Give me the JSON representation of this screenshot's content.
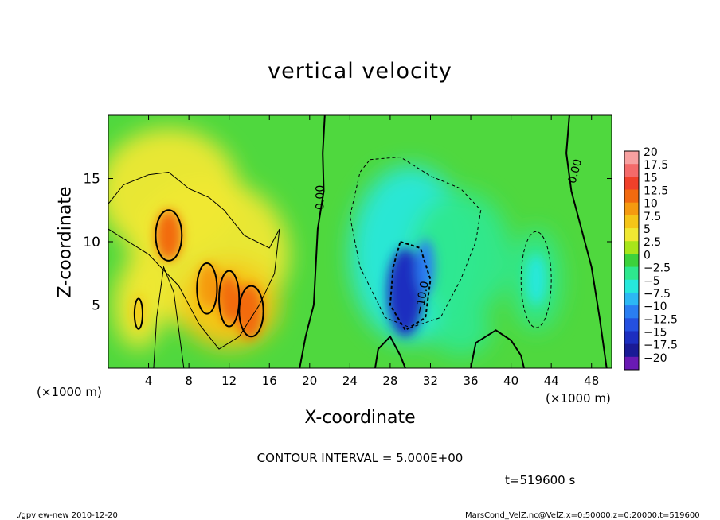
{
  "chart_data": {
    "type": "heatmap",
    "title": "vertical velocity",
    "xlabel": "X-coordinate",
    "ylabel": "Z-coordinate",
    "x_unit_left": "(×1000 m)",
    "x_unit_right": "(×1000 m)",
    "xlim": [
      0,
      50
    ],
    "ylim": [
      0,
      20
    ],
    "x_ticks": [
      "4",
      "8",
      "12",
      "16",
      "20",
      "24",
      "28",
      "32",
      "36",
      "40",
      "44",
      "48"
    ],
    "x_tick_values": [
      4,
      8,
      12,
      16,
      20,
      24,
      28,
      32,
      36,
      40,
      44,
      48
    ],
    "y_ticks": [
      "5",
      "10",
      "15"
    ],
    "y_tick_values": [
      5,
      10,
      15
    ],
    "colorbar_labels": [
      "20",
      "17.5",
      "15",
      "12.5",
      "10",
      "7.5",
      "5",
      "2.5",
      "0",
      "−2.5",
      "−5",
      "−7.5",
      "−10",
      "−12.5",
      "−15",
      "−17.5",
      "−20"
    ],
    "colorbar_colors": [
      "#f7a0a0",
      "#f46a6a",
      "#f0402a",
      "#f26a10",
      "#f59a10",
      "#f5c518",
      "#f0e832",
      "#a8e61a",
      "#3cd23c",
      "#2ee88e",
      "#26e8dc",
      "#2cb8f4",
      "#2a7ef2",
      "#2450e0",
      "#1c2ec0",
      "#1a1a96",
      "#6a1ab4"
    ],
    "contour_labels": [
      "0.00",
      "0.00",
      "−10.0"
    ],
    "features": [
      {
        "kind": "updraft",
        "x": 6,
        "z": 10.5,
        "peak": 12.5
      },
      {
        "kind": "updraft",
        "x": 12,
        "z": 5.5,
        "peak": 12.5
      },
      {
        "kind": "updraft",
        "x": 14,
        "z": 4.5,
        "peak": 12.5
      },
      {
        "kind": "updraft",
        "x": 10,
        "z": 6.5,
        "peak": 10
      },
      {
        "kind": "updraft",
        "x": 3,
        "z": 4.5,
        "peak": 7.5
      },
      {
        "kind": "downdraft",
        "x": 29.5,
        "z": 6,
        "peak": -15
      },
      {
        "kind": "downdraft",
        "x": 31.5,
        "z": 8,
        "peak": -10
      },
      {
        "kind": "downdraft",
        "x": 42.5,
        "z": 7,
        "peak": -5
      }
    ]
  },
  "contour_interval": "CONTOUR INTERVAL = 5.000E+00",
  "time_label": "t=519600 s",
  "footer_left": "./gpview-new   2010-12-20",
  "footer_right": "MarsCond_VelZ.nc@VelZ,x=0:50000,z=0:20000,t=519600"
}
